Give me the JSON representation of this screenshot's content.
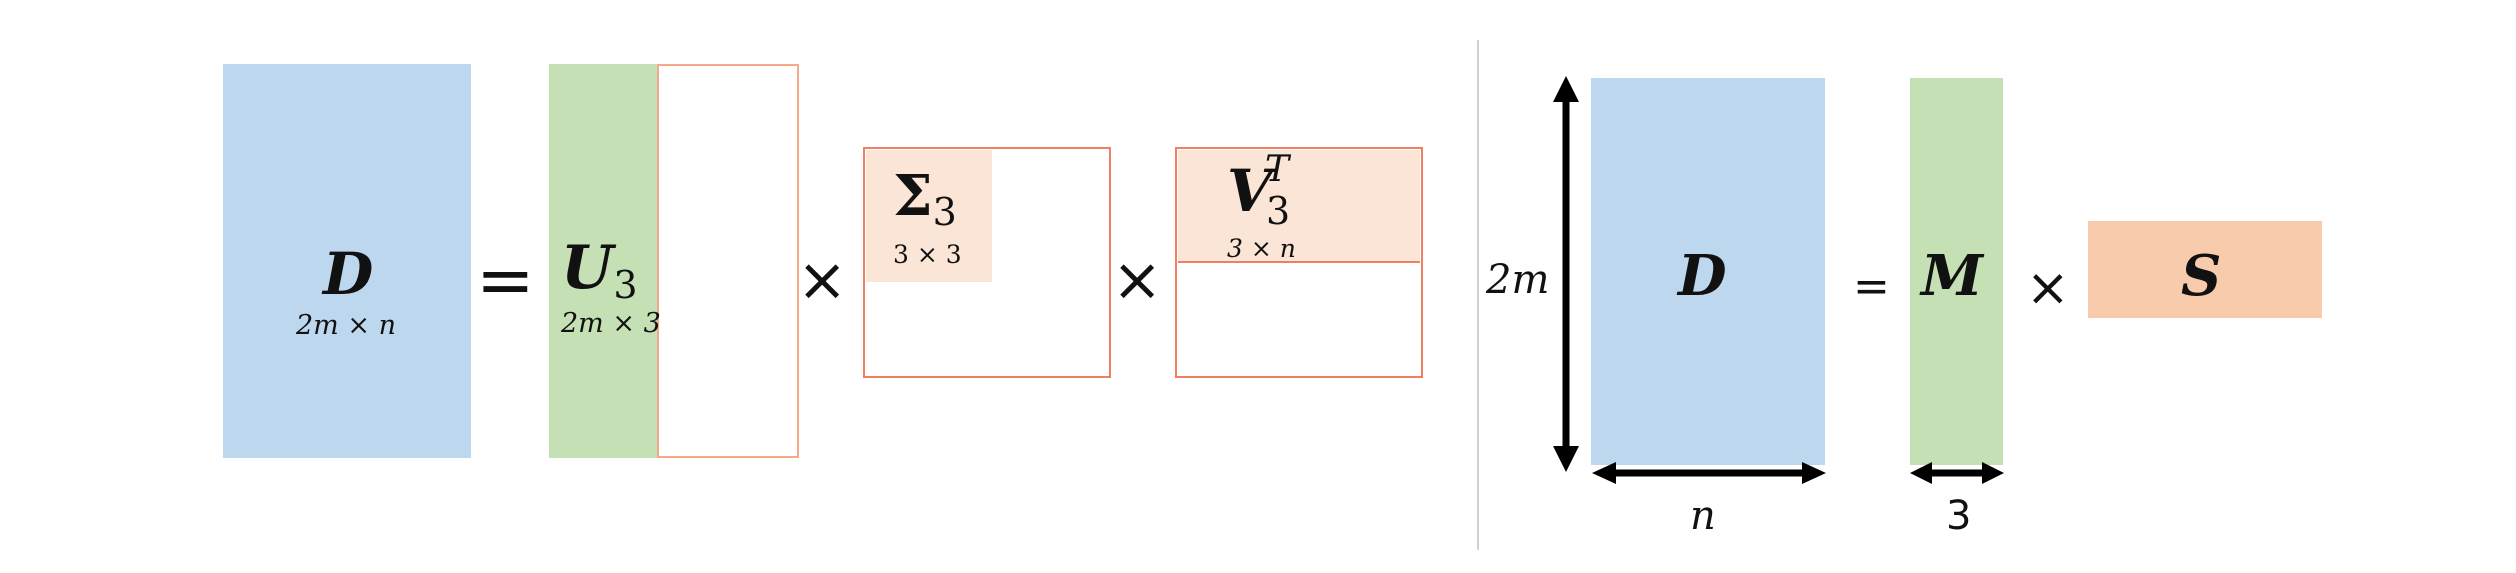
{
  "left": {
    "d_symbol": "D",
    "d_dims": "2m × n",
    "equals": "=",
    "u_symbol": "U",
    "u_sub": "3",
    "u_dims": "2m × 3",
    "times1": "×",
    "sigma_symbol": "Σ",
    "sigma_sub": "3",
    "sigma_dims": "3 × 3",
    "times2": "×",
    "v_symbol": "V",
    "v_sup": "T",
    "v_sub": "3",
    "v_dims": "3 × n"
  },
  "right": {
    "height_label": "2m",
    "d_symbol": "D",
    "width_label": "n",
    "equals": "=",
    "m_symbol": "M",
    "m_width_label": "3",
    "times": "×",
    "s_symbol": "S"
  },
  "colors": {
    "blue": "#bdd7ee",
    "green": "#c5e0b4",
    "salmon_light": "#fbe5d6",
    "salmon": "#f8cbad",
    "outline": "#f07e63",
    "divider": "#d0d0d0"
  }
}
